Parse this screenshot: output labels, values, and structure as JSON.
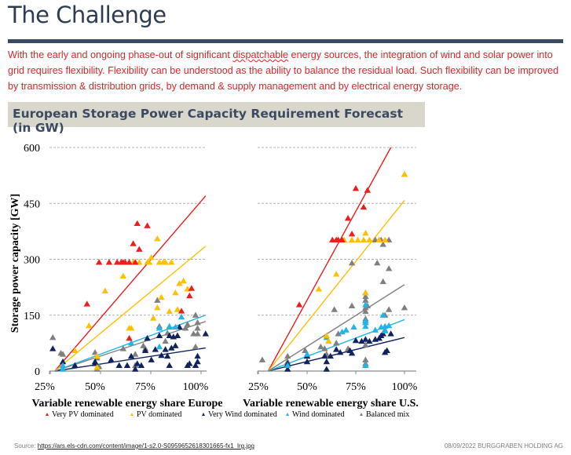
{
  "page": {
    "title": "The Challenge",
    "intro_before": "With the early and ongoing phase-out of significant ",
    "intro_squiggle": "dispatchable",
    "intro_after": " energy sources, the integration of wind and solar power into grid requires flexibility. Flexibility can be understood as the ability to balance the residual load. Such flexibility can be improved by transmission & distribution grids, by demand & supply management and by electrical energy storage.",
    "chart_header": "European Storage Power Capacity Requirement Forecast (in GW)",
    "source_label": "Source: ",
    "source_link": "https://ars.els-cdn.com/content/image/1-s2.0-S0959652618301665-fx1_lrg.jpg",
    "footer_right": "08/09/2022  BURGGRABEN HOLDING AG"
  },
  "colors": {
    "very_pv": "#ee1c1c",
    "pv": "#ffc000",
    "very_wind": "#10235e",
    "wind": "#1fb4ea",
    "balanced": "#808080"
  },
  "chart_data": [
    {
      "type": "scatter",
      "title": "",
      "xlabel": "Variable renewable energy share Europe",
      "ylabel": "Storage power capacity [GW]",
      "xlim": [
        25,
        105
      ],
      "ylim": [
        0,
        600
      ],
      "xticks": [
        "25%",
        "50%",
        "75%",
        "100%"
      ],
      "xtick_values": [
        25,
        50,
        75,
        100
      ],
      "yticks": [
        "0",
        "150",
        "300",
        "450",
        "600"
      ],
      "ytick_values": [
        0,
        150,
        300,
        450,
        600
      ],
      "grid": "horizontal-dashed",
      "series": [
        {
          "name": "Very PV dominated",
          "key": "very_pv",
          "points": [
            [
              46,
              180
            ],
            [
              52,
              292
            ],
            [
              57,
              292
            ],
            [
              61,
              292
            ],
            [
              63,
              292
            ],
            [
              64,
              292
            ],
            [
              65,
              292
            ],
            [
              67,
              292
            ],
            [
              69,
              342
            ],
            [
              70,
              292
            ],
            [
              71,
              396
            ],
            [
              72,
              327
            ],
            [
              76,
              390
            ],
            [
              93,
              161
            ],
            [
              97,
              202
            ],
            [
              98,
              222
            ],
            [
              67,
              88
            ]
          ],
          "trend": [
            [
              30,
              0
            ],
            [
              105,
              470
            ]
          ]
        },
        {
          "name": "PV dominated",
          "key": "pv",
          "points": [
            [
              40,
              55
            ],
            [
              47,
              122
            ],
            [
              51,
              40
            ],
            [
              51,
              10
            ],
            [
              55,
              215
            ],
            [
              64,
              255
            ],
            [
              67,
              115
            ],
            [
              68,
              115
            ],
            [
              69,
              292
            ],
            [
              72,
              292
            ],
            [
              76,
              292
            ],
            [
              77,
              292
            ],
            [
              78,
              305
            ],
            [
              79,
              142
            ],
            [
              81,
              355
            ],
            [
              81,
              170
            ],
            [
              82,
              292
            ],
            [
              83,
              198
            ],
            [
              84,
              292
            ],
            [
              85,
              292
            ],
            [
              87,
              160
            ],
            [
              88,
              292
            ],
            [
              90,
              210
            ],
            [
              91,
              165
            ],
            [
              92,
              235
            ],
            [
              94,
              242
            ],
            [
              96,
              220
            ]
          ],
          "trend": [
            [
              30,
              0
            ],
            [
              105,
              335
            ]
          ]
        },
        {
          "name": "Very Wind dominated",
          "key": "very_wind",
          "points": [
            [
              29,
              60
            ],
            [
              34,
              25
            ],
            [
              40,
              15
            ],
            [
              50,
              20
            ],
            [
              50,
              25
            ],
            [
              58,
              30
            ],
            [
              62,
              15
            ],
            [
              66,
              15
            ],
            [
              68,
              40
            ],
            [
              70,
              5
            ],
            [
              71,
              20
            ],
            [
              73,
              15
            ],
            [
              75,
              55
            ],
            [
              76,
              88
            ],
            [
              78,
              30
            ],
            [
              80,
              58
            ],
            [
              82,
              95
            ],
            [
              83,
              42
            ],
            [
              85,
              58
            ],
            [
              86,
              40
            ],
            [
              87,
              15
            ],
            [
              87,
              95
            ],
            [
              88,
              62
            ],
            [
              89,
              92
            ],
            [
              90,
              68
            ],
            [
              91,
              95
            ],
            [
              92,
              118
            ],
            [
              96,
              15
            ],
            [
              97,
              20
            ],
            [
              100,
              15
            ],
            [
              101,
              25
            ],
            [
              101,
              40
            ],
            [
              105,
              100
            ]
          ],
          "trend": [
            [
              30,
              0
            ],
            [
              105,
              62
            ]
          ]
        },
        {
          "name": "Wind dominated",
          "key": "wind",
          "points": [
            [
              34,
              5
            ],
            [
              34,
              15
            ],
            [
              68,
              75
            ],
            [
              82,
              115
            ],
            [
              82,
              65
            ],
            [
              87,
              120
            ],
            [
              90,
              118
            ],
            [
              93,
              145
            ]
          ],
          "trend": [
            [
              30,
              0
            ],
            [
              105,
              150
            ]
          ]
        },
        {
          "name": "Balanced mix",
          "key": "balanced",
          "points": [
            [
              29,
              90
            ],
            [
              33,
              48
            ],
            [
              34,
              45
            ],
            [
              50,
              50
            ],
            [
              51,
              35
            ],
            [
              51,
              5
            ],
            [
              52,
              12
            ],
            [
              64,
              60
            ],
            [
              70,
              45
            ],
            [
              70,
              15
            ],
            [
              74,
              68
            ],
            [
              75,
              60
            ],
            [
              81,
              190
            ],
            [
              82,
              120
            ],
            [
              85,
              80
            ],
            [
              86,
              102
            ],
            [
              87,
              118
            ],
            [
              95,
              115
            ],
            [
              96,
              125
            ],
            [
              99,
              100
            ],
            [
              100,
              150
            ],
            [
              100,
              65
            ],
            [
              101,
              100
            ],
            [
              101,
              130
            ],
            [
              101,
              115
            ]
          ],
          "trend": [
            [
              30,
              0
            ],
            [
              105,
              133
            ]
          ]
        }
      ]
    },
    {
      "type": "scatter",
      "title": "",
      "xlabel": "Variable renewable energy share U.S.",
      "ylabel": "",
      "xlim": [
        25,
        105
      ],
      "ylim": [
        0,
        600
      ],
      "xticks": [
        "25%",
        "50%",
        "75%",
        "100%"
      ],
      "xtick_values": [
        25,
        50,
        75,
        100
      ],
      "yticks": [],
      "ytick_values": [
        0,
        150,
        300,
        450,
        600
      ],
      "grid": "horizontal-dashed",
      "series": [
        {
          "name": "Very PV dominated",
          "key": "very_pv",
          "points": [
            [
              46,
              178
            ],
            [
              63,
              352
            ],
            [
              65,
              352
            ],
            [
              66,
              352
            ],
            [
              68,
              352
            ],
            [
              71,
              410
            ],
            [
              73,
              368
            ],
            [
              75,
              490
            ],
            [
              79,
              440
            ],
            [
              81,
              485
            ]
          ],
          "trend": [
            [
              30,
              0
            ],
            [
              93,
              600
            ]
          ]
        },
        {
          "name": "PV dominated",
          "key": "pv",
          "points": [
            [
              56,
              220
            ],
            [
              60,
              95
            ],
            [
              61,
              80
            ],
            [
              65,
              260
            ],
            [
              69,
              352
            ],
            [
              73,
              352
            ],
            [
              76,
              352
            ],
            [
              79,
              352
            ],
            [
              80,
              370
            ],
            [
              82,
              352
            ],
            [
              87,
              352
            ],
            [
              90,
              352
            ],
            [
              100,
              528
            ],
            [
              80,
              210
            ]
          ],
          "trend": [
            [
              30,
              0
            ],
            [
              100,
              458
            ]
          ]
        },
        {
          "name": "Very Wind dominated",
          "key": "very_wind",
          "points": [
            [
              40,
              5
            ],
            [
              40,
              20
            ],
            [
              50,
              25
            ],
            [
              50,
              40
            ],
            [
              59,
              40
            ],
            [
              60,
              25
            ],
            [
              60,
              5
            ],
            [
              62,
              40
            ],
            [
              65,
              58
            ],
            [
              67,
              50
            ],
            [
              72,
              55
            ],
            [
              73,
              48
            ],
            [
              75,
              82
            ],
            [
              78,
              80
            ],
            [
              80,
              85
            ],
            [
              82,
              80
            ],
            [
              85,
              85
            ],
            [
              87,
              88
            ],
            [
              88,
              95
            ],
            [
              89,
              100
            ],
            [
              90,
              50
            ],
            [
              91,
              55
            ],
            [
              93,
              100
            ]
          ],
          "trend": [
            [
              30,
              0
            ],
            [
              100,
              90
            ]
          ]
        },
        {
          "name": "Wind dominated",
          "key": "wind",
          "points": [
            [
              40,
              15
            ],
            [
              50,
              45
            ],
            [
              60,
              90
            ],
            [
              61,
              80
            ],
            [
              68,
              105
            ],
            [
              70,
              110
            ],
            [
              74,
              118
            ],
            [
              80,
              178
            ],
            [
              80,
              120
            ],
            [
              80,
              135
            ],
            [
              80,
              130
            ],
            [
              85,
              110
            ],
            [
              88,
              118
            ],
            [
              89,
              150
            ],
            [
              90,
              108
            ],
            [
              92,
              122
            ],
            [
              90,
              120
            ],
            [
              80,
              15
            ]
          ],
          "trend": [
            [
              30,
              0
            ],
            [
              100,
              138
            ]
          ]
        },
        {
          "name": "Balanced mix",
          "key": "balanced",
          "points": [
            [
              27,
              30
            ],
            [
              40,
              40
            ],
            [
              40,
              25
            ],
            [
              49,
              55
            ],
            [
              50,
              40
            ],
            [
              57,
              65
            ],
            [
              59,
              60
            ],
            [
              60,
              45
            ],
            [
              64,
              165
            ],
            [
              65,
              75
            ],
            [
              66,
              100
            ],
            [
              71,
              60
            ],
            [
              73,
              290
            ],
            [
              73,
              175
            ],
            [
              80,
              210
            ],
            [
              80,
              200
            ],
            [
              80,
              190
            ],
            [
              80,
              170
            ],
            [
              80,
              160
            ],
            [
              80,
              140
            ],
            [
              80,
              130
            ],
            [
              80,
              70
            ],
            [
              80,
              30
            ],
            [
              80,
              20
            ],
            [
              81,
              175
            ],
            [
              85,
              352
            ],
            [
              86,
              290
            ],
            [
              87,
              352
            ],
            [
              88,
              352
            ],
            [
              89,
              340
            ],
            [
              89,
              240
            ],
            [
              90,
              150
            ],
            [
              90,
              110
            ],
            [
              92,
              352
            ],
            [
              92,
              275
            ],
            [
              92,
              165
            ],
            [
              100,
              170
            ],
            [
              100,
              528
            ]
          ],
          "trend": [
            [
              30,
              0
            ],
            [
              100,
              232
            ]
          ]
        }
      ]
    }
  ],
  "legend": [
    {
      "label": "Very PV dominated",
      "key": "very_pv"
    },
    {
      "label": "PV dominated",
      "key": "pv"
    },
    {
      "label": "Very Wind dominated",
      "key": "very_wind"
    },
    {
      "label": "Wind dominated",
      "key": "wind"
    },
    {
      "label": "Balanced mix",
      "key": "balanced"
    }
  ]
}
